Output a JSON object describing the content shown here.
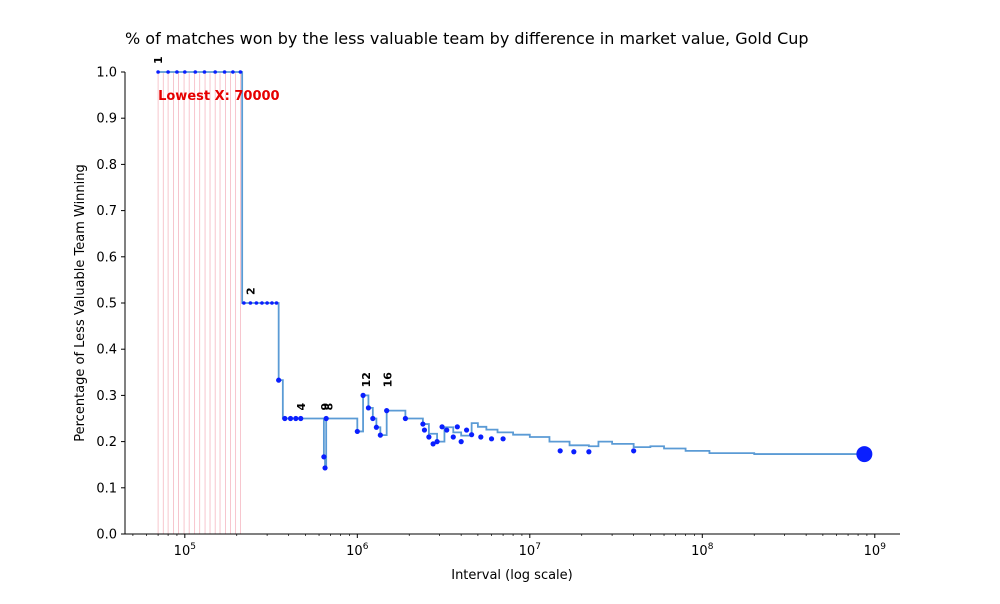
{
  "chart_data": {
    "type": "line",
    "title": "% of matches won by the less valuable team by difference in market value, Gold Cup",
    "xlabel": "Interval (log scale)",
    "ylabel": "Percentage of Less Valuable Team Winning",
    "x_scale": "log",
    "xlim": [
      45000,
      1400000000
    ],
    "ylim": [
      0,
      1.0
    ],
    "x_ticks": [
      100000,
      1000000,
      10000000,
      100000000,
      1000000000
    ],
    "x_tick_labels": [
      {
        "base": "10",
        "exp": "5"
      },
      {
        "base": "10",
        "exp": "6"
      },
      {
        "base": "10",
        "exp": "7"
      },
      {
        "base": "10",
        "exp": "8"
      },
      {
        "base": "10",
        "exp": "9"
      }
    ],
    "y_ticks": [
      0.0,
      0.1,
      0.2,
      0.3,
      0.4,
      0.5,
      0.6,
      0.7,
      0.8,
      0.9,
      1.0
    ],
    "y_tick_labels": [
      "0.0",
      "0.1",
      "0.2",
      "0.3",
      "0.4",
      "0.5",
      "0.6",
      "0.7",
      "0.8",
      "0.9",
      "1.0"
    ],
    "grid": false,
    "line_color": "#5b9bd5",
    "marker_color": "#0a1fff",
    "rule_color": "#f5b8c2",
    "annotation_color": "#e60000",
    "annotation": {
      "text": "Lowest X: 70000",
      "x": 70000,
      "y": 0.95
    },
    "series": [
      {
        "x": [
          70000,
          210000,
          215000,
          340000,
          350000,
          370000,
          470000,
          640000,
          650000,
          660000,
          1000000,
          1080000,
          1160000,
          1230000,
          1290000,
          1360000,
          1480000,
          1900000,
          2400000,
          2600000,
          2900000,
          3200000,
          3600000,
          4000000,
          4600000,
          5000000,
          5600000,
          6500000,
          8000000,
          10000000,
          13000000,
          17000000,
          22000000,
          25000000,
          30000000,
          40000000,
          50000000,
          60000000,
          80000000,
          110000000,
          200000000,
          500000000,
          870000000
        ],
        "y": [
          1.0,
          1.0,
          0.5,
          0.5,
          0.333,
          0.25,
          0.25,
          0.167,
          0.143,
          0.25,
          0.222,
          0.3,
          0.273,
          0.25,
          0.231,
          0.214,
          0.267,
          0.25,
          0.238,
          0.217,
          0.2,
          0.231,
          0.22,
          0.213,
          0.24,
          0.232,
          0.226,
          0.22,
          0.215,
          0.21,
          0.2,
          0.192,
          0.19,
          0.2,
          0.195,
          0.188,
          0.19,
          0.185,
          0.18,
          0.175,
          0.173,
          0.173,
          0.173
        ]
      }
    ],
    "markers": [
      {
        "x": 70000,
        "y": 1.0
      },
      {
        "x": 80000,
        "y": 1.0
      },
      {
        "x": 90000,
        "y": 1.0
      },
      {
        "x": 100000,
        "y": 1.0
      },
      {
        "x": 115000,
        "y": 1.0
      },
      {
        "x": 130000,
        "y": 1.0
      },
      {
        "x": 150000,
        "y": 1.0
      },
      {
        "x": 170000,
        "y": 1.0
      },
      {
        "x": 190000,
        "y": 1.0
      },
      {
        "x": 210000,
        "y": 1.0
      },
      {
        "x": 220000,
        "y": 0.5
      },
      {
        "x": 240000,
        "y": 0.5
      },
      {
        "x": 260000,
        "y": 0.5
      },
      {
        "x": 280000,
        "y": 0.5
      },
      {
        "x": 300000,
        "y": 0.5
      },
      {
        "x": 320000,
        "y": 0.5
      },
      {
        "x": 340000,
        "y": 0.5
      },
      {
        "x": 350000,
        "y": 0.333
      },
      {
        "x": 380000,
        "y": 0.25
      },
      {
        "x": 410000,
        "y": 0.25
      },
      {
        "x": 440000,
        "y": 0.25
      },
      {
        "x": 470000,
        "y": 0.25
      },
      {
        "x": 640000,
        "y": 0.167
      },
      {
        "x": 650000,
        "y": 0.143
      },
      {
        "x": 660000,
        "y": 0.25
      },
      {
        "x": 1000000,
        "y": 0.222
      },
      {
        "x": 1080000,
        "y": 0.3
      },
      {
        "x": 1160000,
        "y": 0.273
      },
      {
        "x": 1230000,
        "y": 0.25
      },
      {
        "x": 1290000,
        "y": 0.231
      },
      {
        "x": 1360000,
        "y": 0.214
      },
      {
        "x": 1480000,
        "y": 0.267
      },
      {
        "x": 1900000,
        "y": 0.25
      },
      {
        "x": 2400000,
        "y": 0.238
      },
      {
        "x": 2450000,
        "y": 0.225
      },
      {
        "x": 2600000,
        "y": 0.21
      },
      {
        "x": 2750000,
        "y": 0.195
      },
      {
        "x": 2900000,
        "y": 0.2
      },
      {
        "x": 3100000,
        "y": 0.232
      },
      {
        "x": 3300000,
        "y": 0.225
      },
      {
        "x": 3600000,
        "y": 0.21
      },
      {
        "x": 3800000,
        "y": 0.232
      },
      {
        "x": 4000000,
        "y": 0.2
      },
      {
        "x": 4300000,
        "y": 0.225
      },
      {
        "x": 4600000,
        "y": 0.215
      },
      {
        "x": 5200000,
        "y": 0.21
      },
      {
        "x": 6000000,
        "y": 0.206
      },
      {
        "x": 7000000,
        "y": 0.206
      },
      {
        "x": 15000000,
        "y": 0.18
      },
      {
        "x": 18000000,
        "y": 0.178
      },
      {
        "x": 22000000,
        "y": 0.178
      },
      {
        "x": 40000000,
        "y": 0.18
      },
      {
        "x": 870000000,
        "y": 0.173,
        "large": true
      }
    ],
    "count_labels": [
      {
        "text": "1",
        "x": 70000,
        "y": 1.0
      },
      {
        "text": "2",
        "x": 240000,
        "y": 0.5
      },
      {
        "text": "4",
        "x": 470000,
        "y": 0.25
      },
      {
        "text": "9",
        "x": 650000,
        "y": 0.25
      },
      {
        "text": "8",
        "x": 680000,
        "y": 0.25
      },
      {
        "text": "12",
        "x": 1120000,
        "y": 0.3
      },
      {
        "text": "16",
        "x": 1500000,
        "y": 0.3
      }
    ],
    "rules_x": [
      70000,
      75000,
      80000,
      86000,
      92000,
      99000,
      106000,
      114000,
      122000,
      131000,
      140000,
      150000,
      160000,
      172000,
      184000,
      197000,
      210000
    ]
  }
}
